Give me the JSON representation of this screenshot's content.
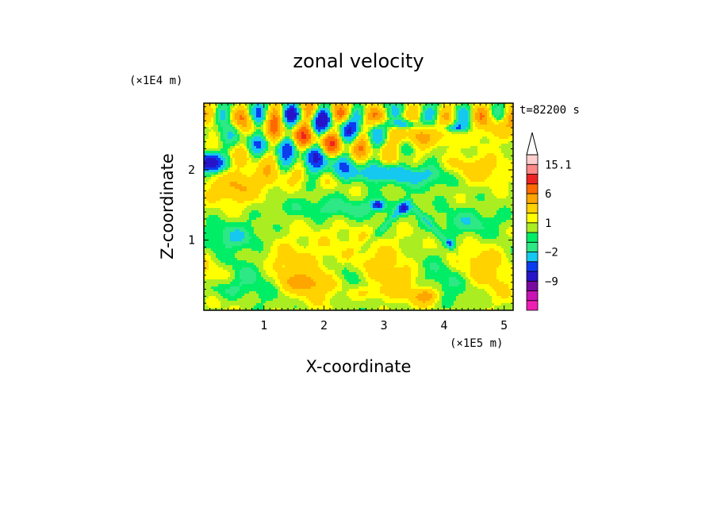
{
  "chart_data": {
    "type": "heatmap",
    "title": "zonal velocity",
    "xlabel": "X-coordinate",
    "ylabel": "Z-coordinate",
    "x_multiplier": "(×1E5 m)",
    "y_multiplier": "(×1E4 m)",
    "time_label": "t=82200 s",
    "xlim": [
      0,
      5.15
    ],
    "ylim": [
      0,
      2.95
    ],
    "x_ticks": [
      "1",
      "2",
      "3",
      "4",
      "5"
    ],
    "y_ticks": [
      "1",
      "2"
    ],
    "colorbar": {
      "labels": [
        "15.1",
        "6",
        "1",
        "-2",
        "-9"
      ],
      "display_labels": [
        "15.1",
        "6",
        "1",
        "−2",
        "−9"
      ],
      "levels": [
        -15,
        -12,
        -9,
        -6,
        -4,
        -2,
        -1,
        0,
        1,
        2,
        4,
        6,
        9,
        12,
        15.1
      ],
      "colors": [
        "#f01fb4",
        "#c814b4",
        "#780aa0",
        "#2814c8",
        "#0a3cf0",
        "#14c8f0",
        "#2de884",
        "#00ee66",
        "#aaee22",
        "#ffff00",
        "#ffd200",
        "#ffa500",
        "#ff6a00",
        "#ee2222",
        "#ff8888",
        "#ffcfcf"
      ],
      "extend_max": true
    }
  }
}
